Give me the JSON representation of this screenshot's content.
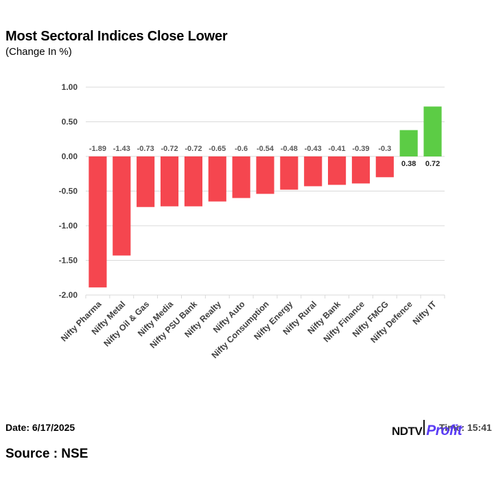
{
  "header": {
    "title": "Most Sectoral Indices Close Lower",
    "subtitle": "(Change In %)"
  },
  "footer": {
    "date": "Date: 6/17/2025",
    "source": "Source : NSE",
    "time": "Time: 15:41",
    "logo_ndtv": "NDTV",
    "logo_profit": "Profit"
  },
  "colors": {
    "negative": "#f5464f",
    "positive": "#5ccc45",
    "grid": "#d9d9d9",
    "axis_text": "#404040",
    "label_text": "#595959"
  },
  "chart_data": {
    "type": "bar",
    "title": "Most Sectoral Indices Close Lower",
    "subtitle": "(Change In %)",
    "categories": [
      "Nifty Pharma",
      "Nifty Metal",
      "Nifty Oil & Gas",
      "Nifty Media",
      "Nifty PSU Bank",
      "Nifty Realty",
      "Nifty Auto",
      "Nifty Consumption",
      "Nifty Energy",
      "Nifty Rural",
      "Nifty Bank",
      "Nifty Finance",
      "Nifty FMCG",
      "Nifty Defence",
      "Nifty IT"
    ],
    "values": [
      -1.89,
      -1.43,
      -0.73,
      -0.72,
      -0.72,
      -0.65,
      -0.6,
      -0.54,
      -0.48,
      -0.43,
      -0.41,
      -0.39,
      -0.3,
      0.38,
      0.72
    ],
    "data_labels": [
      "-1.89",
      "-1.43",
      "-0.73",
      "-0.72",
      "-0.72",
      "-0.65",
      "-0.6",
      "-0.54",
      "-0.48",
      "-0.43",
      "-0.41",
      "-0.39",
      "-0.3",
      "0.38",
      "0.72"
    ],
    "yticks": [
      "1.00",
      "0.50",
      "0.00",
      "-0.50",
      "-1.00",
      "-1.50",
      "-2.00"
    ],
    "ylim": [
      -2,
      1
    ],
    "xlabel": "",
    "ylabel": "",
    "grid": true,
    "legend": "none"
  }
}
